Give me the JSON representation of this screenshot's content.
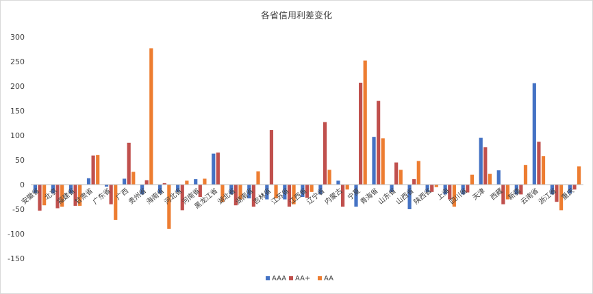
{
  "chart_data": {
    "type": "bar",
    "title": "各省信用利差变化",
    "xlabel": "",
    "ylabel": "",
    "ylim": [
      -150,
      300
    ],
    "yticks": [
      300,
      250,
      200,
      150,
      100,
      50,
      0,
      -50,
      -100,
      -150
    ],
    "grid": false,
    "legend_position": "bottom",
    "categories": [
      "安徽省",
      "北京",
      "福建省",
      "甘肃省",
      "广东省",
      "广西",
      "贵州省",
      "海南省",
      "河北省",
      "河南省",
      "黑龙江省",
      "湖北省",
      "湖南省",
      "吉林省",
      "江苏省",
      "江西省",
      "辽宁省",
      "内蒙古",
      "宁夏",
      "青海省",
      "山东省",
      "山西省",
      "陕西省",
      "上海",
      "四川省",
      "天津",
      "西藏",
      "新疆",
      "云南省",
      "浙江省",
      "重庆"
    ],
    "series": [
      {
        "name": "AAA",
        "color": "#4472C4",
        "values": [
          -17,
          -18,
          -18,
          13,
          -4,
          12,
          -20,
          -18,
          -15,
          11,
          63,
          -20,
          -28,
          -30,
          -30,
          -25,
          -20,
          8,
          -45,
          97,
          -15,
          -50,
          -15,
          -20,
          -20,
          95,
          29,
          -20,
          206,
          -20,
          -18
        ]
      },
      {
        "name": "AA+",
        "color": "#C0504D",
        "values": [
          -53,
          -48,
          -43,
          59,
          -40,
          85,
          9,
          3,
          -52,
          -25,
          65,
          -42,
          -45,
          111,
          -45,
          -27,
          127,
          -45,
          207,
          170,
          45,
          11,
          -15,
          -30,
          -16,
          76,
          -40,
          -20,
          87,
          -35,
          -10
        ]
      },
      {
        "name": "AA",
        "color": "#ED7D31",
        "values": [
          -42,
          -45,
          -43,
          60,
          -72,
          26,
          277,
          -90,
          8,
          12,
          -35,
          -30,
          27,
          -28,
          -40,
          -15,
          30,
          -10,
          252,
          94,
          30,
          48,
          -5,
          -45,
          20,
          22,
          -30,
          40,
          58,
          -52,
          37
        ]
      }
    ]
  }
}
